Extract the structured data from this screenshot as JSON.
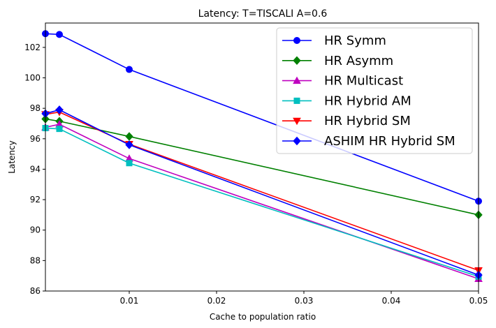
{
  "chart_data": {
    "type": "line",
    "title": "Latency: T=TISCALI A=0.6",
    "xlabel": "Cache to population ratio",
    "ylabel": "Latency",
    "xlim": [
      0.0004,
      0.05
    ],
    "ylim": [
      86,
      103.6
    ],
    "x": [
      0.0004,
      0.002,
      0.01,
      0.05
    ],
    "xticks": [
      0.01,
      0.02,
      0.03,
      0.04,
      0.05
    ],
    "xtick_labels": [
      "0.01",
      "0.02",
      "0.03",
      "0.04",
      "0.05"
    ],
    "yticks": [
      86,
      88,
      90,
      92,
      94,
      96,
      98,
      100,
      102
    ],
    "ytick_labels": [
      "86",
      "88",
      "90",
      "92",
      "94",
      "96",
      "98",
      "100",
      "102"
    ],
    "grid": false,
    "legend_position": "top-right",
    "series": [
      {
        "name": "HR Symm",
        "color": "#0000ff",
        "marker": "circle",
        "values": [
          102.9,
          102.85,
          100.55,
          91.9
        ]
      },
      {
        "name": "HR Asymm",
        "color": "#008000",
        "marker": "diamond",
        "values": [
          97.3,
          97.15,
          96.15,
          91.0
        ]
      },
      {
        "name": "HR Multicast",
        "color": "#bf00bf",
        "marker": "triangle-up",
        "values": [
          96.75,
          96.95,
          94.7,
          86.8
        ]
      },
      {
        "name": "HR Hybrid AM",
        "color": "#00bfbf",
        "marker": "square",
        "values": [
          96.7,
          96.65,
          94.4,
          86.95
        ]
      },
      {
        "name": "HR Hybrid SM",
        "color": "#ff0000",
        "marker": "triangle-down",
        "values": [
          97.6,
          97.75,
          95.65,
          87.35
        ]
      },
      {
        "name": "ASHIM HR Hybrid SM",
        "color": "#0000ff",
        "marker": "diamond",
        "values": [
          97.65,
          97.9,
          95.6,
          87.05
        ]
      }
    ]
  }
}
